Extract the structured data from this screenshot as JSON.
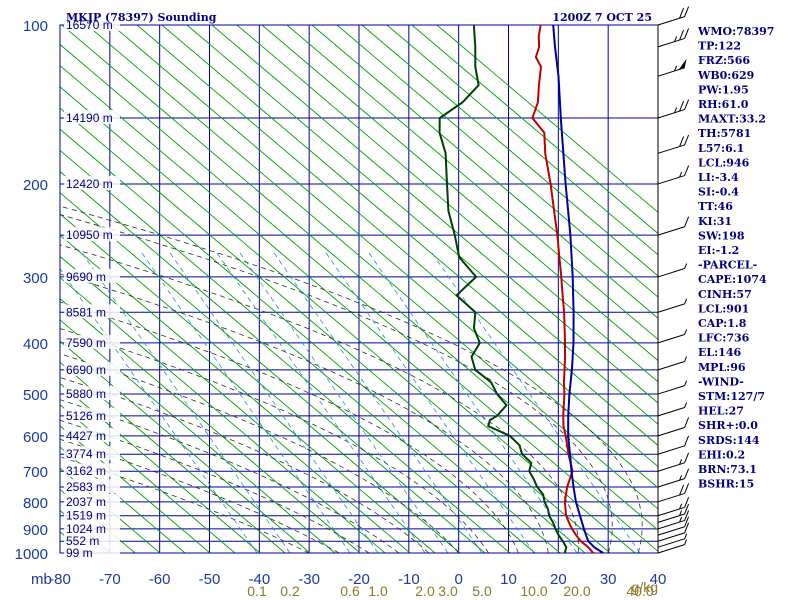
{
  "chart_data": {
    "type": "skew-t",
    "title_left": "MKJP (78397) Sounding",
    "title_right": "1200Z  7 OCT 25",
    "pressure_axis_unit": "mb",
    "pressure_ticks": [
      100,
      200,
      300,
      400,
      500,
      600,
      700,
      800,
      900,
      1000
    ],
    "pressure_range": [
      100,
      1000
    ],
    "temperature_ticks": [
      -80,
      -70,
      -60,
      -50,
      -40,
      -30,
      -20,
      -10,
      0,
      10,
      20,
      30,
      40
    ],
    "temperature_range_at_surface": [
      -80,
      40
    ],
    "mixing_ratio_unit": "g/kg",
    "mixing_ratio_ticks": [
      {
        "label": "0.1",
        "value": 0.1
      },
      {
        "label": "0.2",
        "value": 0.2
      },
      {
        "label": "0.6",
        "value": 0.6
      },
      {
        "label": "1.0",
        "value": 1.0
      },
      {
        "label": "2.0",
        "value": 2.0
      },
      {
        "label": "3.0",
        "value": 3.0
      },
      {
        "label": "5.0",
        "value": 5.0
      },
      {
        "label": "10.0",
        "value": 10.0
      },
      {
        "label": "20.0",
        "value": 20.0
      },
      {
        "label": "40.0",
        "value": 40.0
      }
    ],
    "height_labels": [
      {
        "p": 100,
        "label": "16570 m"
      },
      {
        "p": 150,
        "label": "14190 m"
      },
      {
        "p": 200,
        "label": "12420 m"
      },
      {
        "p": 250,
        "label": "10950 m"
      },
      {
        "p": 300,
        "label": "9690 m"
      },
      {
        "p": 350,
        "label": "8581 m"
      },
      {
        "p": 400,
        "label": "7590 m"
      },
      {
        "p": 450,
        "label": "6690 m"
      },
      {
        "p": 500,
        "label": "5880 m"
      },
      {
        "p": 550,
        "label": "5126 m"
      },
      {
        "p": 600,
        "label": "4427 m"
      },
      {
        "p": 650,
        "label": "3774 m"
      },
      {
        "p": 700,
        "label": "3162 m"
      },
      {
        "p": 750,
        "label": "2583 m"
      },
      {
        "p": 800,
        "label": "2037 m"
      },
      {
        "p": 850,
        "label": "1519 m"
      },
      {
        "p": 900,
        "label": "1024 m"
      },
      {
        "p": 950,
        "label": "552 m"
      },
      {
        "p": 1000,
        "label": "99 m"
      }
    ],
    "series": [
      {
        "name": "Temperature",
        "color": "#c00000",
        "points": [
          [
            1005,
            28.2
          ],
          [
            1000,
            27.0
          ],
          [
            975,
            25.0
          ],
          [
            950,
            22.5
          ],
          [
            925,
            20.5
          ],
          [
            900,
            18.6
          ],
          [
            875,
            16.9
          ],
          [
            850,
            15.2
          ],
          [
            800,
            12.6
          ],
          [
            750,
            10.5
          ],
          [
            700,
            8.9
          ],
          [
            650,
            5.2
          ],
          [
            600,
            1.5
          ],
          [
            575,
            -0.6
          ],
          [
            550,
            -2.4
          ],
          [
            525,
            -4.1
          ],
          [
            500,
            -5.9
          ],
          [
            475,
            -8.0
          ],
          [
            450,
            -10.0
          ],
          [
            425,
            -12.1
          ],
          [
            400,
            -14.5
          ],
          [
            375,
            -17.1
          ],
          [
            350,
            -19.9
          ],
          [
            325,
            -23.1
          ],
          [
            300,
            -26.5
          ],
          [
            275,
            -30.3
          ],
          [
            250,
            -34.4
          ],
          [
            225,
            -39.2
          ],
          [
            200,
            -44.5
          ],
          [
            175,
            -50.8
          ],
          [
            160,
            -54.5
          ],
          [
            150,
            -59.4
          ],
          [
            140,
            -61.0
          ],
          [
            130,
            -63.7
          ],
          [
            120,
            -66.4
          ],
          [
            115,
            -69.1
          ],
          [
            110,
            -70.2
          ],
          [
            105,
            -72.1
          ],
          [
            100,
            -73.6
          ]
        ]
      },
      {
        "name": "Dewpoint",
        "color": "#004000",
        "points": [
          [
            1005,
            21.9
          ],
          [
            1000,
            21.3
          ],
          [
            975,
            20.6
          ],
          [
            950,
            18.9
          ],
          [
            925,
            17.0
          ],
          [
            900,
            15.3
          ],
          [
            875,
            13.7
          ],
          [
            850,
            11.8
          ],
          [
            825,
            10.4
          ],
          [
            800,
            8.5
          ],
          [
            775,
            7.0
          ],
          [
            750,
            4.5
          ],
          [
            725,
            2.5
          ],
          [
            700,
            0.2
          ],
          [
            675,
            -0.8
          ],
          [
            650,
            -4.1
          ],
          [
            625,
            -6.2
          ],
          [
            600,
            -9.7
          ],
          [
            575,
            -15.7
          ],
          [
            560,
            -16.4
          ],
          [
            550,
            -15.7
          ],
          [
            525,
            -15.6
          ],
          [
            500,
            -19.4
          ],
          [
            475,
            -22.6
          ],
          [
            450,
            -27.9
          ],
          [
            425,
            -30.9
          ],
          [
            400,
            -31.6
          ],
          [
            375,
            -35.3
          ],
          [
            350,
            -37.7
          ],
          [
            325,
            -44.4
          ],
          [
            300,
            -43.6
          ],
          [
            275,
            -50.4
          ],
          [
            250,
            -55.0
          ],
          [
            225,
            -60.4
          ],
          [
            200,
            -65.3
          ],
          [
            175,
            -70.8
          ],
          [
            160,
            -75.5
          ],
          [
            150,
            -78.0
          ],
          [
            140,
            -76.1
          ],
          [
            130,
            -75.8
          ],
          [
            120,
            -79.6
          ],
          [
            110,
            -83.0
          ],
          [
            100,
            -87.0
          ]
        ]
      },
      {
        "name": "Parcel",
        "color": "#0000a0",
        "points": [
          [
            1000,
            29.0
          ],
          [
            975,
            26.2
          ],
          [
            950,
            24.0
          ],
          [
            925,
            22.5
          ],
          [
            900,
            21.0
          ],
          [
            850,
            18.0
          ],
          [
            800,
            14.8
          ],
          [
            750,
            11.8
          ],
          [
            700,
            8.7
          ],
          [
            650,
            5.5
          ],
          [
            600,
            2.0
          ],
          [
            550,
            -1.4
          ],
          [
            500,
            -4.9
          ],
          [
            450,
            -8.5
          ],
          [
            400,
            -12.8
          ],
          [
            350,
            -18.0
          ],
          [
            300,
            -24.2
          ],
          [
            250,
            -31.8
          ],
          [
            200,
            -41.5
          ],
          [
            150,
            -53.7
          ],
          [
            125,
            -61.3
          ],
          [
            110,
            -67.0
          ],
          [
            100,
            -71.1
          ]
        ]
      }
    ],
    "wind_barbs": [
      {
        "p": 1000,
        "speed": 5
      },
      {
        "p": 975,
        "speed": 5
      },
      {
        "p": 950,
        "speed": 10
      },
      {
        "p": 925,
        "speed": 10
      },
      {
        "p": 900,
        "speed": 15
      },
      {
        "p": 875,
        "speed": 15
      },
      {
        "p": 850,
        "speed": 15
      },
      {
        "p": 800,
        "speed": 20
      },
      {
        "p": 750,
        "speed": 15
      },
      {
        "p": 700,
        "speed": 15
      },
      {
        "p": 650,
        "speed": 10
      },
      {
        "p": 600,
        "speed": 10
      },
      {
        "p": 550,
        "speed": 5
      },
      {
        "p": 500,
        "speed": 5
      },
      {
        "p": 450,
        "speed": 5
      },
      {
        "p": 400,
        "speed": 5
      },
      {
        "p": 350,
        "speed": 5
      },
      {
        "p": 300,
        "speed": 5
      },
      {
        "p": 250,
        "speed": 10
      },
      {
        "p": 200,
        "speed": 15
      },
      {
        "p": 175,
        "speed": 20
      },
      {
        "p": 150,
        "speed": 25
      },
      {
        "p": 125,
        "speed": 55
      },
      {
        "p": 110,
        "speed": 25
      },
      {
        "p": 100,
        "speed": 20
      }
    ]
  },
  "indices": [
    "WMO:78397",
    "TP:122",
    "FRZ:566",
    "WB0:629",
    "PW:1.95",
    "RH:61.0",
    "MAXT:33.2",
    "TH:5781",
    "L57:6.1",
    "LCL:946",
    "LI:-3.4",
    "SI:-0.4",
    "TT:46",
    "KI:31",
    "SW:198",
    "EI:-1.2",
    "-PARCEL-",
    "CAPE:1074",
    "CINH:57",
    "LCL:901",
    "CAP:1.8",
    "LFC:736",
    "EL:146",
    "MPL:96",
    "-WIND-",
    "STM:127/7",
    "HEL:27",
    "SHR+:0.0",
    "SRDS:144",
    "EHI:0.2",
    "BRN:73.1",
    "BSHR:15"
  ],
  "colors": {
    "isobar": "#0000a0",
    "isotherm": "#0000a0",
    "dry_adiabat": "#00a000",
    "moist_adiabat": "#303030",
    "mixing_ratio": "#2a8ad0",
    "text": "#000080"
  }
}
